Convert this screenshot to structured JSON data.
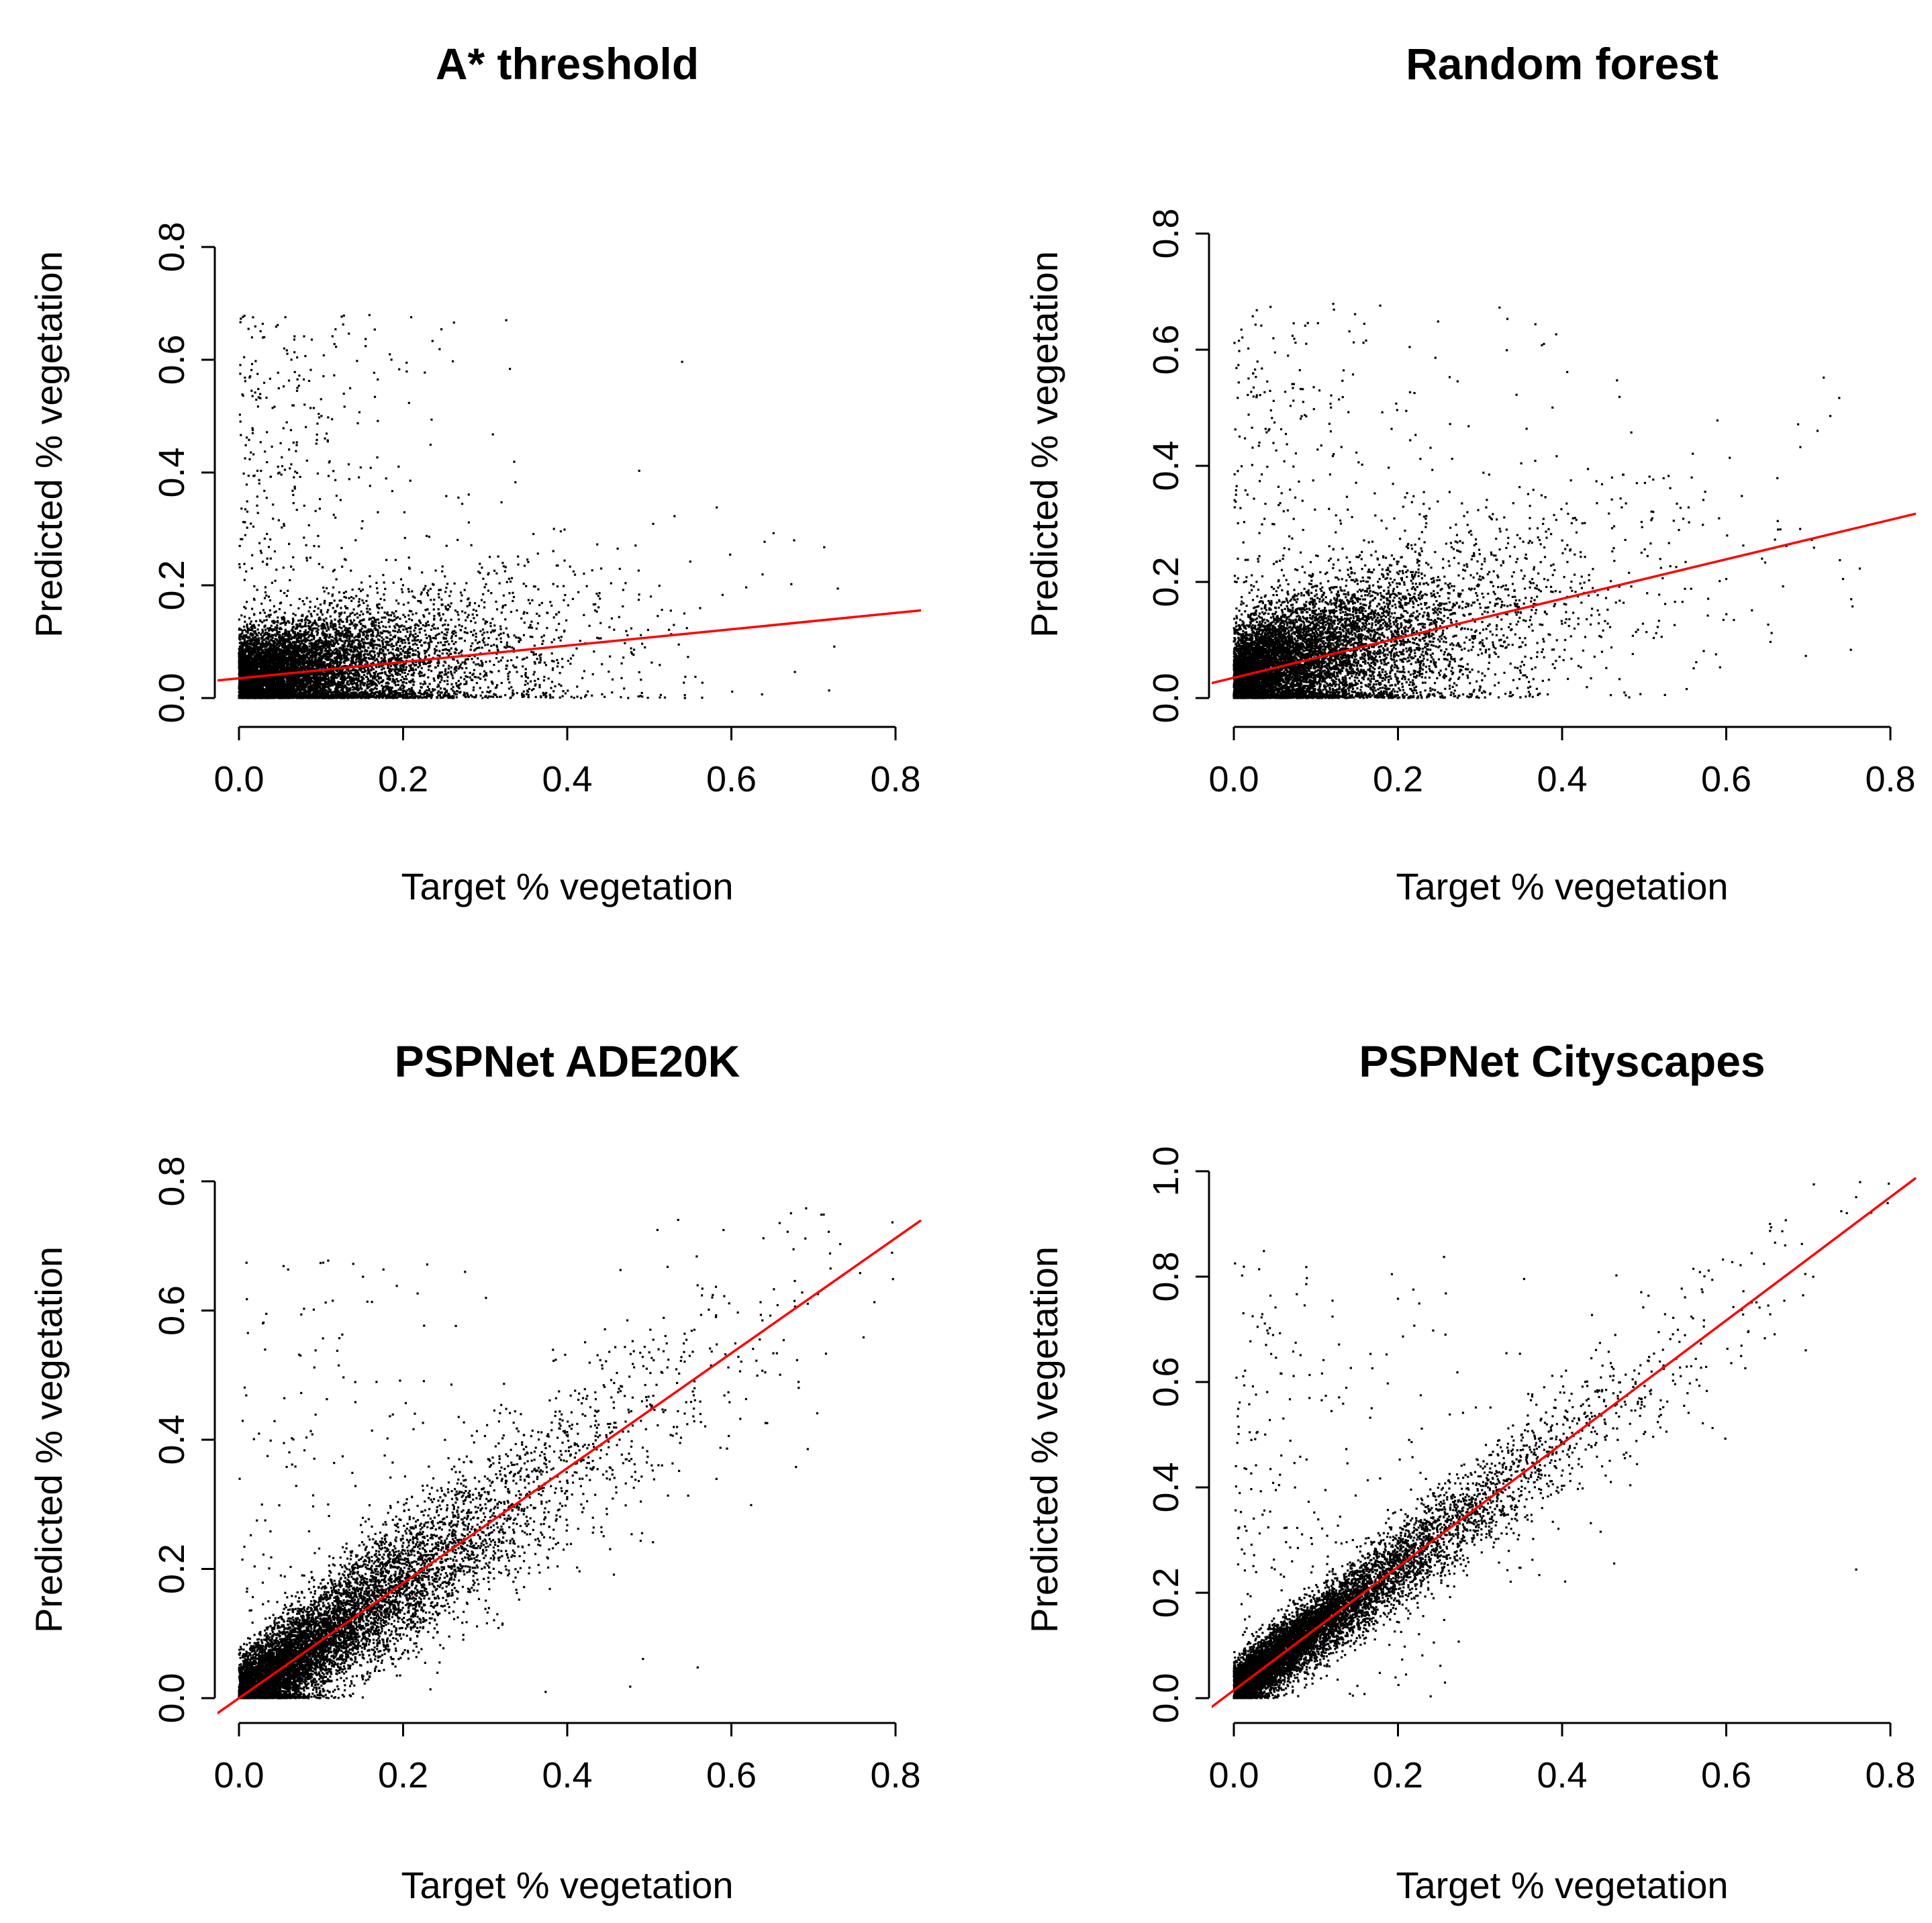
{
  "chart_data": [
    {
      "id": "a-star-threshold",
      "type": "scatter",
      "title": "A* threshold",
      "xlabel": "Target % vegetation",
      "ylabel": "Predicted % vegetation",
      "xlim": [
        0.0,
        0.8
      ],
      "ylim": [
        0.0,
        0.8
      ],
      "xticks": [
        "0.0",
        "0.2",
        "0.4",
        "0.6",
        "0.8"
      ],
      "yticks": [
        "0.0",
        "0.2",
        "0.4",
        "0.6",
        "0.8"
      ],
      "n_points": 9000,
      "regression_line": {
        "intercept": 0.035,
        "slope": 0.145
      },
      "point_model": {
        "x_mean": 0.1,
        "residual_sd": 0.06,
        "outlier_rate": 0.05
      }
    },
    {
      "id": "random-forest",
      "type": "scatter",
      "title": "Random forest",
      "xlabel": "Target % vegetation",
      "ylabel": "Predicted % vegetation",
      "xlim": [
        0.0,
        0.8
      ],
      "ylim": [
        0.0,
        0.8
      ],
      "xticks": [
        "0.0",
        "0.2",
        "0.4",
        "0.6",
        "0.8"
      ],
      "yticks": [
        "0.0",
        "0.2",
        "0.4",
        "0.6",
        "0.8"
      ],
      "n_points": 9000,
      "regression_line": {
        "intercept": 0.035,
        "slope": 0.34
      },
      "point_model": {
        "x_mean": 0.11,
        "residual_sd": 0.07,
        "outlier_rate": 0.04
      }
    },
    {
      "id": "pspnet-ade20k",
      "type": "scatter",
      "title": "PSPNet ADE20K",
      "xlabel": "Target % vegetation",
      "ylabel": "Predicted % vegetation",
      "xlim": [
        0.0,
        0.8
      ],
      "ylim": [
        0.0,
        0.8
      ],
      "xticks": [
        "0.0",
        "0.2",
        "0.4",
        "0.6",
        "0.8"
      ],
      "yticks": [
        "0.0",
        "0.2",
        "0.4",
        "0.6",
        "0.8"
      ],
      "n_points": 9000,
      "regression_line": {
        "intercept": 0.0,
        "slope": 0.89
      },
      "point_model": {
        "x_mean": 0.13,
        "residual_sd": 0.05,
        "outlier_rate": 0.02
      }
    },
    {
      "id": "pspnet-cityscapes",
      "type": "scatter",
      "title": "PSPNet Cityscapes",
      "xlabel": "Target % vegetation",
      "ylabel": "Predicted % vegetation",
      "xlim": [
        0.0,
        0.8
      ],
      "ylim": [
        0.0,
        1.0
      ],
      "xticks": [
        "0.0",
        "0.2",
        "0.4",
        "0.6",
        "0.8"
      ],
      "yticks": [
        "0.0",
        "0.2",
        "0.4",
        "0.6",
        "0.8",
        "1.0"
      ],
      "n_points": 9000,
      "regression_line": {
        "intercept": 0.015,
        "slope": 1.17
      },
      "point_model": {
        "x_mean": 0.12,
        "residual_sd": 0.04,
        "outlier_rate": 0.03
      }
    }
  ]
}
